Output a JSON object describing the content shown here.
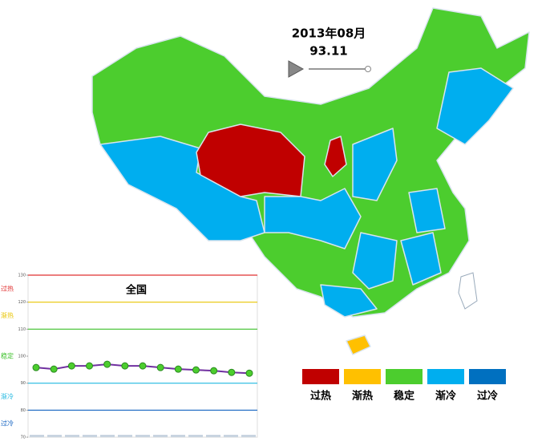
{
  "header": {
    "date": "2013年08月",
    "value": "93.11"
  },
  "legend": [
    {
      "label": "过热",
      "color": "#c00000"
    },
    {
      "label": "渐热",
      "color": "#ffc000"
    },
    {
      "label": "稳定",
      "color": "#4ccd2e"
    },
    {
      "label": "渐冷",
      "color": "#00aeef"
    },
    {
      "label": "过冷",
      "color": "#0070c0"
    }
  ],
  "chart_data": {
    "type": "line",
    "title": "全国",
    "ylim": [
      70,
      130
    ],
    "yticks": [
      70,
      80,
      90,
      100,
      110,
      120,
      130
    ],
    "zones": [
      {
        "label": "过热",
        "from": 120,
        "to": 130,
        "color": "#e03030"
      },
      {
        "label": "渐热",
        "from": 110,
        "to": 120,
        "color": "#e8c400"
      },
      {
        "label": "稳定",
        "from": 90,
        "to": 110,
        "color": "#3cc02a"
      },
      {
        "label": "渐冷",
        "from": 80,
        "to": 90,
        "color": "#20b8e0"
      },
      {
        "label": "过冷",
        "from": 70,
        "to": 80,
        "color": "#1060c0"
      }
    ],
    "series": [
      {
        "color": "#7030a0",
        "marker_color": "#4ccd2e",
        "values": [
          95.8,
          95.2,
          96.4,
          96.4,
          97.0,
          96.4,
          96.4,
          95.8,
          95.2,
          94.9,
          94.6,
          94.0,
          93.7
        ]
      }
    ]
  }
}
